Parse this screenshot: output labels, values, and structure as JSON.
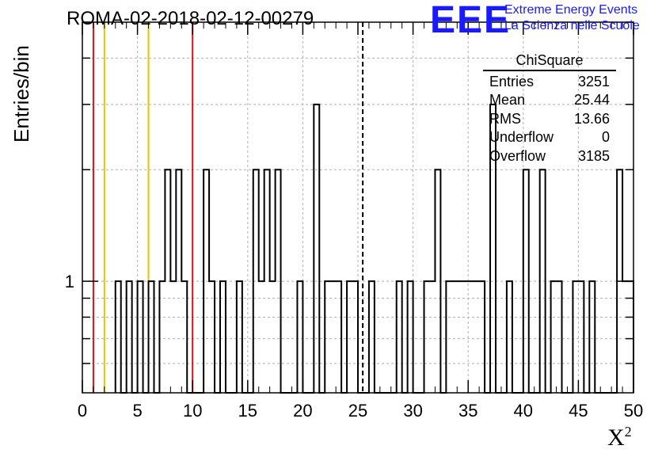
{
  "header": {
    "title": "ROMA-02-2018-02-12-00279",
    "logo_letters": "EEE",
    "logo_line1": "Extreme Energy Events",
    "logo_line2": "La Scienza nelle Scuole"
  },
  "axes": {
    "ylabel": "Entries/bin",
    "xlabel": "X",
    "xlabel_sup": "2"
  },
  "stats_box": {
    "title": "ChiSquare",
    "rows": [
      {
        "label": "Entries",
        "value": "3251"
      },
      {
        "label": "Mean",
        "value": "25.44"
      },
      {
        "label": "RMS",
        "value": "13.66"
      },
      {
        "label": "Underflow",
        "value": "0"
      },
      {
        "label": "Overflow",
        "value": "3185"
      }
    ]
  },
  "chart_data": {
    "type": "bar",
    "title": "ROMA-02-2018-02-12-00279",
    "xlabel": "X²",
    "ylabel": "Entries/bin",
    "xlim": [
      0,
      50
    ],
    "ylim": [
      0.5,
      5
    ],
    "yscale": "log",
    "grid": true,
    "bin_width": 0.5,
    "x_ticks": [
      "0",
      "5",
      "10",
      "15",
      "20",
      "25",
      "30",
      "35",
      "40",
      "45",
      "50"
    ],
    "y_ticks": [
      "1"
    ],
    "bins": [
      {
        "x": 3.0,
        "y": 1
      },
      {
        "x": 3.5,
        "y": 0
      },
      {
        "x": 4.0,
        "y": 1
      },
      {
        "x": 4.5,
        "y": 0
      },
      {
        "x": 5.0,
        "y": 1
      },
      {
        "x": 5.5,
        "y": 0
      },
      {
        "x": 6.0,
        "y": 1
      },
      {
        "x": 6.5,
        "y": 0
      },
      {
        "x": 7.0,
        "y": 1
      },
      {
        "x": 7.5,
        "y": 2
      },
      {
        "x": 8.0,
        "y": 1
      },
      {
        "x": 8.5,
        "y": 2
      },
      {
        "x": 9.0,
        "y": 1
      },
      {
        "x": 9.5,
        "y": 0
      },
      {
        "x": 10.0,
        "y": 0
      },
      {
        "x": 10.5,
        "y": 0
      },
      {
        "x": 11.0,
        "y": 2
      },
      {
        "x": 11.5,
        "y": 1
      },
      {
        "x": 12.0,
        "y": 0
      },
      {
        "x": 12.5,
        "y": 1
      },
      {
        "x": 13.0,
        "y": 0
      },
      {
        "x": 13.5,
        "y": 0
      },
      {
        "x": 14.0,
        "y": 1
      },
      {
        "x": 14.5,
        "y": 0
      },
      {
        "x": 15.0,
        "y": 0
      },
      {
        "x": 15.5,
        "y": 2
      },
      {
        "x": 16.0,
        "y": 1
      },
      {
        "x": 16.5,
        "y": 2
      },
      {
        "x": 17.0,
        "y": 1
      },
      {
        "x": 17.5,
        "y": 2
      },
      {
        "x": 18.0,
        "y": 0
      },
      {
        "x": 18.5,
        "y": 0
      },
      {
        "x": 19.0,
        "y": 0
      },
      {
        "x": 19.5,
        "y": 1
      },
      {
        "x": 20.0,
        "y": 0
      },
      {
        "x": 20.5,
        "y": 0
      },
      {
        "x": 21.0,
        "y": 3
      },
      {
        "x": 21.5,
        "y": 0
      },
      {
        "x": 22.0,
        "y": 1
      },
      {
        "x": 22.5,
        "y": 1
      },
      {
        "x": 23.0,
        "y": 1
      },
      {
        "x": 23.5,
        "y": 0
      },
      {
        "x": 24.0,
        "y": 1
      },
      {
        "x": 24.5,
        "y": 1
      },
      {
        "x": 25.0,
        "y": 0
      },
      {
        "x": 25.5,
        "y": 0
      },
      {
        "x": 26.0,
        "y": 1
      },
      {
        "x": 26.5,
        "y": 0
      },
      {
        "x": 27.0,
        "y": 0
      },
      {
        "x": 27.5,
        "y": 0
      },
      {
        "x": 28.0,
        "y": 0
      },
      {
        "x": 28.5,
        "y": 1
      },
      {
        "x": 29.0,
        "y": 0
      },
      {
        "x": 29.5,
        "y": 1
      },
      {
        "x": 30.0,
        "y": 0
      },
      {
        "x": 30.5,
        "y": 0
      },
      {
        "x": 31.0,
        "y": 1
      },
      {
        "x": 31.5,
        "y": 1
      },
      {
        "x": 32.0,
        "y": 2
      },
      {
        "x": 32.5,
        "y": 0
      },
      {
        "x": 33.0,
        "y": 1
      },
      {
        "x": 33.5,
        "y": 1
      },
      {
        "x": 34.0,
        "y": 1
      },
      {
        "x": 34.5,
        "y": 1
      },
      {
        "x": 35.0,
        "y": 1
      },
      {
        "x": 35.5,
        "y": 1
      },
      {
        "x": 36.0,
        "y": 1
      },
      {
        "x": 36.5,
        "y": 0
      },
      {
        "x": 37.0,
        "y": 3
      },
      {
        "x": 37.5,
        "y": 0
      },
      {
        "x": 38.0,
        "y": 0
      },
      {
        "x": 38.5,
        "y": 1
      },
      {
        "x": 39.0,
        "y": 0
      },
      {
        "x": 39.5,
        "y": 0
      },
      {
        "x": 40.0,
        "y": 2
      },
      {
        "x": 40.5,
        "y": 0
      },
      {
        "x": 41.0,
        "y": 0
      },
      {
        "x": 41.5,
        "y": 2
      },
      {
        "x": 42.0,
        "y": 0
      },
      {
        "x": 42.5,
        "y": 1
      },
      {
        "x": 43.0,
        "y": 1
      },
      {
        "x": 43.5,
        "y": 0
      },
      {
        "x": 44.0,
        "y": 0
      },
      {
        "x": 44.5,
        "y": 1
      },
      {
        "x": 45.0,
        "y": 1
      },
      {
        "x": 45.5,
        "y": 0
      },
      {
        "x": 46.0,
        "y": 1
      },
      {
        "x": 46.5,
        "y": 0
      },
      {
        "x": 47.0,
        "y": 0
      },
      {
        "x": 47.5,
        "y": 0
      },
      {
        "x": 48.0,
        "y": 0
      },
      {
        "x": 48.5,
        "y": 2
      },
      {
        "x": 49.0,
        "y": 1
      },
      {
        "x": 49.5,
        "y": 1
      }
    ],
    "vertical_lines": [
      {
        "x": 1,
        "color": "#dd1111",
        "style": "solid"
      },
      {
        "x": 2,
        "color": "#f0c000",
        "style": "solid"
      },
      {
        "x": 6,
        "color": "#f0c000",
        "style": "solid"
      },
      {
        "x": 10,
        "color": "#dd1111",
        "style": "solid"
      },
      {
        "x": 25.44,
        "color": "#000000",
        "style": "dashed"
      }
    ]
  }
}
